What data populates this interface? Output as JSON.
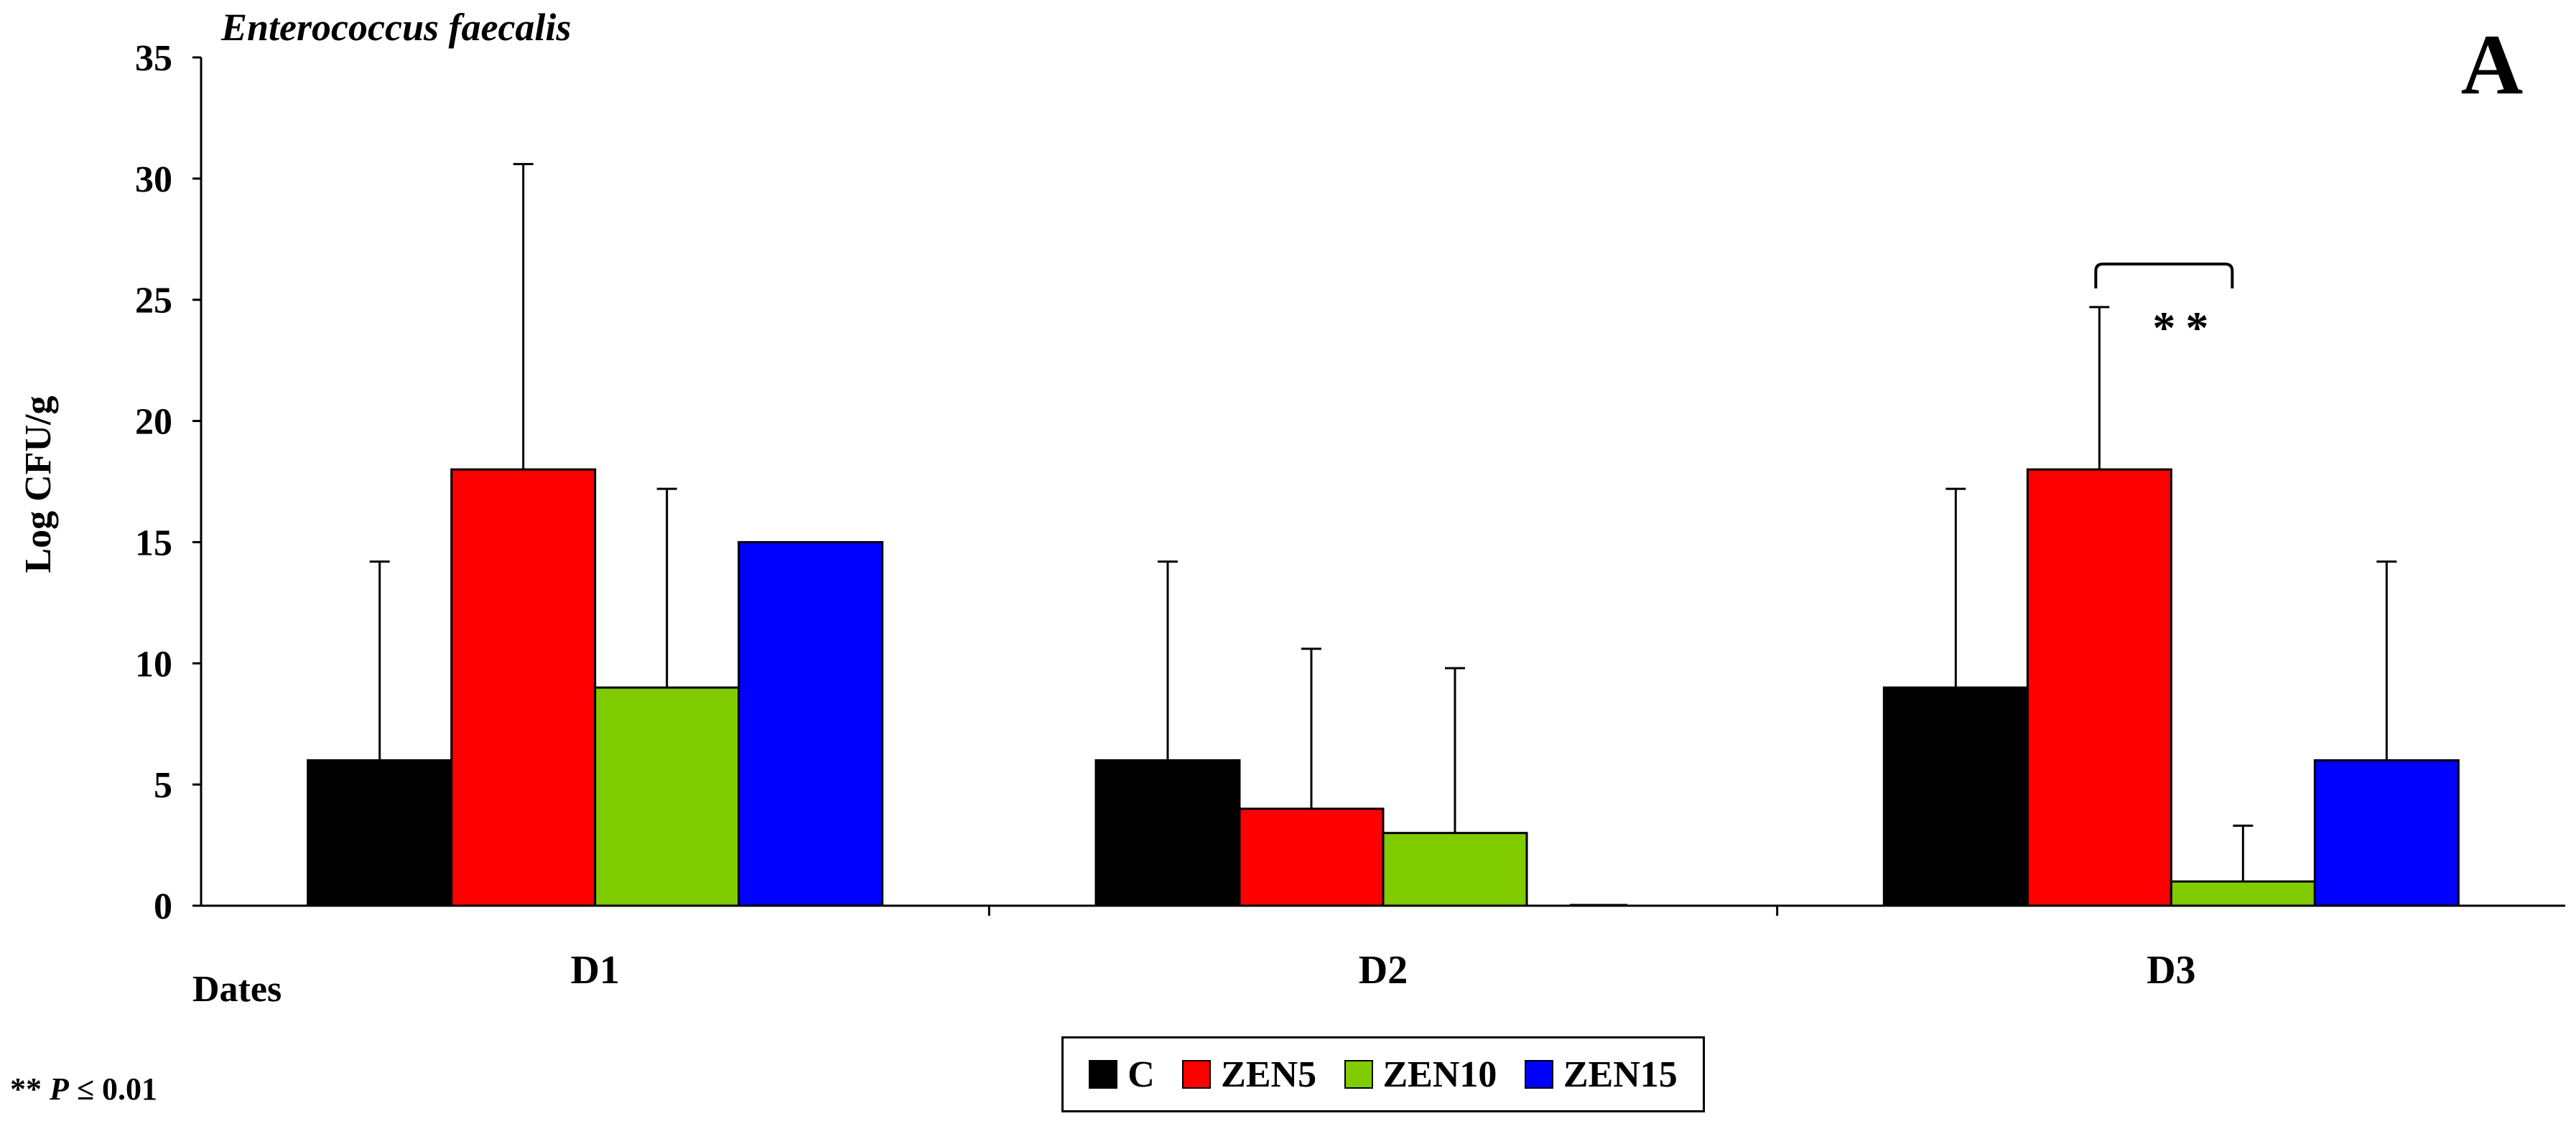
{
  "chart_data": {
    "type": "bar",
    "title": "Enterococcus faecalis",
    "panel_label": "A",
    "xlabel": "Dates",
    "ylabel": "Log CFU/g",
    "ylim": [
      0,
      35
    ],
    "yticks": [
      0,
      5,
      10,
      15,
      20,
      25,
      30,
      35
    ],
    "grid": false,
    "legend_position": "bottom-center",
    "categories": [
      "D1",
      "D2",
      "D3"
    ],
    "series": [
      {
        "name": "C",
        "color": "#000000",
        "values": [
          6,
          6,
          9
        ],
        "error": [
          8.2,
          8.2,
          8.2
        ]
      },
      {
        "name": "ZEN5",
        "color": "#ff0000",
        "values": [
          18,
          4,
          18
        ],
        "error": [
          12.6,
          6.6,
          6.7
        ]
      },
      {
        "name": "ZEN10",
        "color": "#80cc00",
        "values": [
          9,
          3,
          1
        ],
        "error": [
          8.2,
          6.8,
          2.3
        ]
      },
      {
        "name": "ZEN15",
        "color": "#0000ff",
        "values": [
          15,
          0,
          6
        ],
        "error": [
          0,
          0,
          8.2
        ]
      }
    ],
    "annotations": [
      {
        "text": "**",
        "category": "D3",
        "between": [
          "ZEN5",
          "ZEN10"
        ]
      }
    ]
  },
  "footnote": {
    "stars": "**",
    "p": "P",
    "rest": " ≤ 0.01"
  }
}
